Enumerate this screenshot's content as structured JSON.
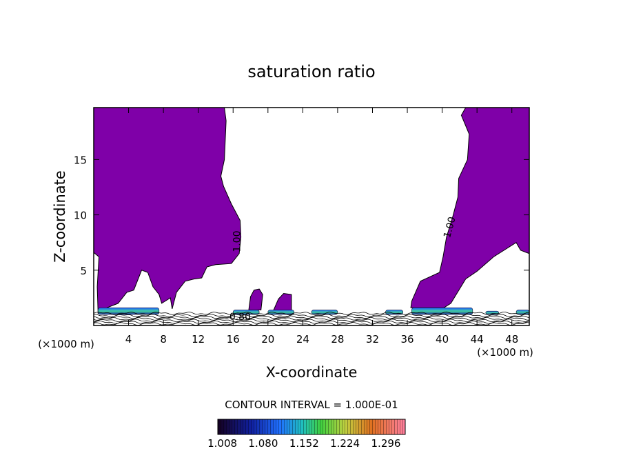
{
  "chart_data": {
    "type": "contour",
    "title": "saturation ratio",
    "xlabel": "X-coordinate",
    "ylabel": "Z-coordinate",
    "x_unit": "(×1000 m)",
    "y_unit": "(×1000 m)",
    "xlim": [
      0,
      50
    ],
    "ylim": [
      0,
      19.7
    ],
    "x_ticks": [
      4,
      8,
      12,
      16,
      20,
      24,
      28,
      32,
      36,
      40,
      44,
      48
    ],
    "y_ticks": [
      5,
      10,
      15
    ],
    "contour_labels": [
      {
        "text": "1.00",
        "x": 16.8,
        "y": 7.6,
        "angle": -90
      },
      {
        "text": "1.00",
        "x": 41.2,
        "y": 8.8,
        "angle": -75
      },
      {
        "text": "0.80",
        "x": 16.8,
        "y": 0.5,
        "angle": 0
      }
    ],
    "contour_interval_text": "CONTOUR INTERVAL = 1.000E-01",
    "colorbar": {
      "labels": [
        "1.008",
        "1.080",
        "1.152",
        "1.224",
        "1.296"
      ],
      "range": [
        1.0,
        1.33
      ]
    },
    "fill_color": "#7f00a8",
    "supersaturated_regions": [
      {
        "name": "left",
        "boundary": [
          [
            0,
            19.7
          ],
          [
            15,
            19.7
          ],
          [
            15.2,
            18.5
          ],
          [
            15,
            15
          ],
          [
            14.6,
            13.5
          ],
          [
            14.9,
            12.6
          ],
          [
            15.8,
            11.0
          ],
          [
            16.8,
            9.5
          ],
          [
            16.9,
            8.0
          ],
          [
            16.7,
            6.5
          ],
          [
            15.8,
            5.6
          ],
          [
            14.0,
            5.5
          ],
          [
            13.0,
            5.3
          ],
          [
            12.4,
            4.3
          ],
          [
            11.5,
            4.2
          ],
          [
            10.5,
            4.0
          ],
          [
            9.5,
            3.0
          ],
          [
            9.0,
            1.5
          ],
          [
            8.8,
            2.5
          ],
          [
            7.8,
            2.0
          ],
          [
            7.5,
            2.8
          ],
          [
            6.8,
            3.5
          ],
          [
            6.2,
            4.8
          ],
          [
            5.5,
            5.0
          ],
          [
            4.6,
            3.2
          ],
          [
            3.8,
            3.0
          ],
          [
            2.8,
            2.0
          ],
          [
            1.5,
            1.6
          ],
          [
            0.5,
            1.1
          ],
          [
            0.4,
            3.5
          ],
          [
            0.6,
            6.2
          ],
          [
            0,
            6.6
          ]
        ]
      },
      {
        "name": "right",
        "boundary": [
          [
            50,
            19.7
          ],
          [
            42.7,
            19.7
          ],
          [
            42.2,
            19.0
          ],
          [
            43.1,
            17.3
          ],
          [
            42.9,
            15.0
          ],
          [
            41.9,
            13.3
          ],
          [
            41.8,
            11.6
          ],
          [
            41.2,
            9.8
          ],
          [
            40.5,
            8.0
          ],
          [
            40.1,
            6.2
          ],
          [
            39.7,
            4.8
          ],
          [
            37.5,
            4.0
          ],
          [
            36.5,
            2.2
          ],
          [
            36.4,
            1.6
          ],
          [
            40.2,
            1.6
          ],
          [
            41.0,
            2.0
          ],
          [
            42.7,
            4.2
          ],
          [
            44.0,
            4.9
          ],
          [
            45.9,
            6.2
          ],
          [
            48.5,
            7.5
          ],
          [
            49.0,
            6.8
          ],
          [
            50,
            6.5
          ]
        ]
      },
      {
        "name": "blob-a",
        "boundary": [
          [
            17.8,
            1.4
          ],
          [
            18.0,
            2.6
          ],
          [
            18.4,
            3.2
          ],
          [
            19.0,
            3.3
          ],
          [
            19.4,
            2.8
          ],
          [
            19.2,
            1.4
          ]
        ]
      },
      {
        "name": "blob-b",
        "boundary": [
          [
            20.6,
            1.3
          ],
          [
            21.2,
            2.4
          ],
          [
            21.8,
            2.9
          ],
          [
            22.7,
            2.8
          ],
          [
            22.7,
            1.3
          ]
        ]
      }
    ],
    "high_spots": [
      {
        "x": [
          0.5,
          7.5
        ],
        "y": [
          1.0,
          1.6
        ]
      },
      {
        "x": [
          16.0,
          19.0
        ],
        "y": [
          1.0,
          1.4
        ]
      },
      {
        "x": [
          20.0,
          23.0
        ],
        "y": [
          1.0,
          1.4
        ]
      },
      {
        "x": [
          25.0,
          28.0
        ],
        "y": [
          1.0,
          1.4
        ]
      },
      {
        "x": [
          33.5,
          35.5
        ],
        "y": [
          1.0,
          1.4
        ]
      },
      {
        "x": [
          36.5,
          43.5
        ],
        "y": [
          1.0,
          1.6
        ]
      },
      {
        "x": [
          45.0,
          46.5
        ],
        "y": [
          1.0,
          1.3
        ]
      },
      {
        "x": [
          48.5,
          50.0
        ],
        "y": [
          1.0,
          1.4
        ]
      }
    ]
  }
}
